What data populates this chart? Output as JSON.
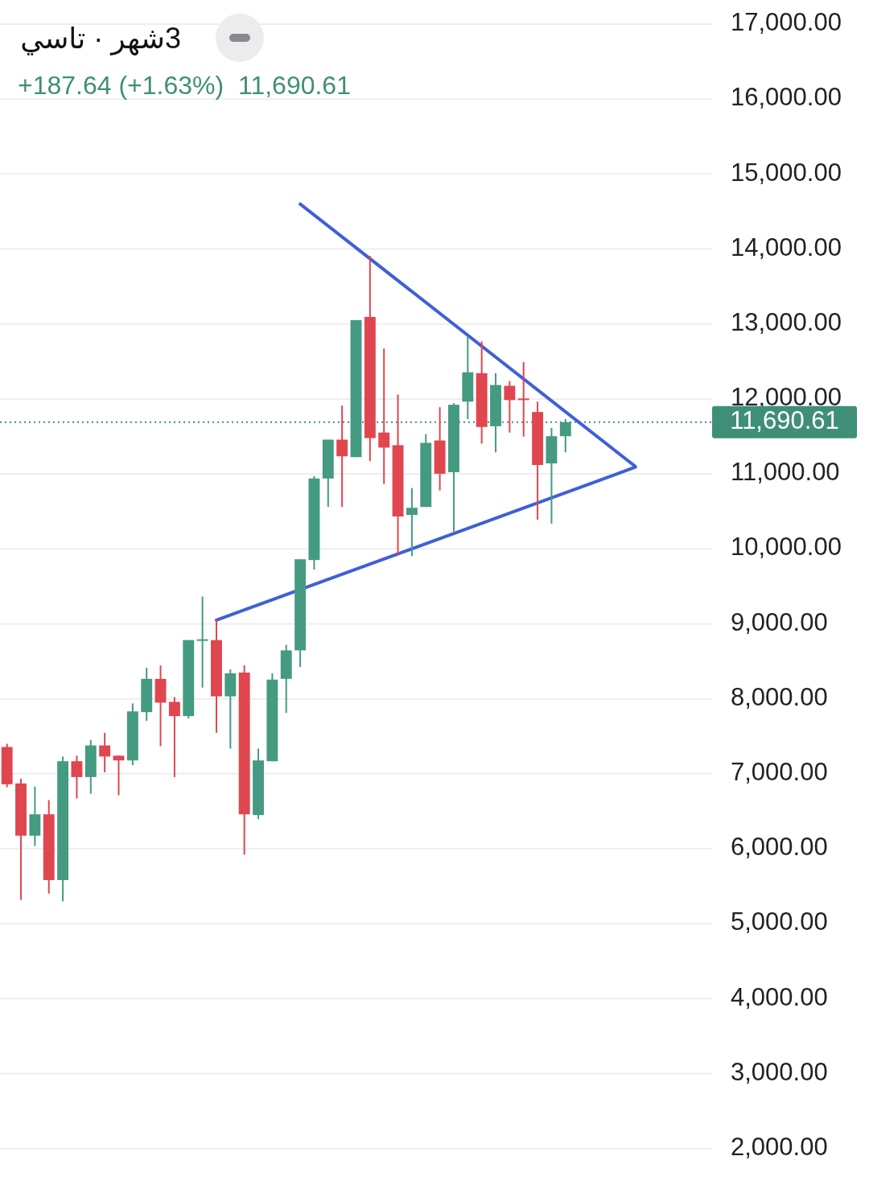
{
  "chart_data": {
    "type": "candlestick",
    "title": "3شهر · تاسي",
    "subtitle": "+187.64 (+1.63%)  11,690.61",
    "categories": [
      null,
      null,
      null,
      null,
      null,
      null,
      null,
      null,
      null,
      null,
      null,
      null,
      null,
      null,
      null,
      null,
      null,
      null,
      null,
      null,
      null,
      null,
      null,
      null,
      null,
      null,
      null,
      null,
      null,
      null,
      null,
      null,
      null,
      null,
      null,
      null,
      null,
      null,
      null,
      null,
      null,
      null,
      null,
      null,
      null,
      null,
      null,
      null,
      null,
      null,
      null
    ],
    "ohlc": [
      [
        7357,
        7400,
        6820,
        6860
      ],
      [
        6871,
        6934,
        5318,
        6174
      ],
      [
        6174,
        6829,
        6036,
        6459
      ],
      [
        6459,
        6649,
        5402,
        5582
      ],
      [
        5582,
        7230,
        5297,
        7167
      ],
      [
        7167,
        7241,
        6670,
        6956
      ],
      [
        6956,
        7452,
        6734,
        7378
      ],
      [
        7378,
        7547,
        7019,
        7230
      ],
      [
        7241,
        7241,
        6713,
        7178
      ],
      [
        7178,
        7938,
        7114,
        7832
      ],
      [
        7822,
        8414,
        7706,
        8266
      ],
      [
        8266,
        8445,
        7367,
        7949
      ],
      [
        7959,
        8023,
        6956,
        7769
      ],
      [
        7769,
        8783,
        7737,
        8783
      ],
      [
        8783,
        9365,
        8149,
        8794
      ],
      [
        8783,
        9058,
        7547,
        8033
      ],
      [
        8033,
        8392,
        7336,
        8340
      ],
      [
        8350,
        8445,
        5920,
        6459
      ],
      [
        6449,
        7336,
        6395,
        7178
      ],
      [
        7167,
        8340,
        7167,
        8256
      ],
      [
        8266,
        8720,
        7811,
        8646
      ],
      [
        8646,
        9861,
        8424,
        9861
      ],
      [
        9851,
        10971,
        9724,
        10939
      ],
      [
        10939,
        11457,
        10559,
        11457
      ],
      [
        11457,
        11911,
        10559,
        11235
      ],
      [
        11224,
        13052,
        11224,
        13052
      ],
      [
        13094,
        13908,
        11171,
        11478
      ],
      [
        11552,
        12672,
        10865,
        11351
      ],
      [
        11383,
        12059,
        9925,
        10432
      ],
      [
        10453,
        10812,
        9903,
        10548
      ],
      [
        10559,
        11531,
        10559,
        11414
      ],
      [
        11446,
        11890,
        10780,
        11002
      ],
      [
        11023,
        11943,
        10231,
        11922
      ],
      [
        11964,
        12830,
        11731,
        12355
      ],
      [
        12344,
        12767,
        11404,
        11626
      ],
      [
        11636,
        12344,
        11288,
        12186
      ],
      [
        12175,
        12239,
        11552,
        11985
      ],
      [
        12006,
        12492,
        11499,
        11985
      ],
      [
        11826,
        11964,
        10390,
        11119
      ],
      [
        11140,
        11615,
        10337,
        11502.97
      ],
      [
        11502.97,
        11731,
        11288,
        11690.61
      ],
      null,
      null,
      null,
      null,
      null,
      null,
      null,
      null,
      null,
      null
    ],
    "colors": [
      "#e0464f",
      "#e0464f",
      "#459a82",
      "#e0464f",
      "#459a82",
      "#e0464f",
      "#459a82",
      "#e0464f",
      "#e0464f",
      "#459a82",
      "#459a82",
      "#e0464f",
      "#e0464f",
      "#459a82",
      "#459a82",
      "#e0464f",
      "#459a82",
      "#e0464f",
      "#459a82",
      "#459a82",
      "#459a82",
      "#459a82",
      "#459a82",
      "#459a82",
      "#e0464f",
      "#459a82",
      "#e0464f",
      "#e0464f",
      "#e0464f",
      "#459a82",
      "#459a82",
      "#e0464f",
      "#459a82",
      "#459a82",
      "#e0464f",
      "#459a82",
      "#e0464f",
      "#e0464f",
      "#e0464f",
      "#459a82",
      "#459a82",
      null,
      null,
      null,
      null,
      null,
      null,
      null,
      null,
      null,
      null
    ],
    "series": [
      {
        "type": "line",
        "color": "#3f5fd8",
        "values": [
          null,
          null,
          null,
          null,
          null,
          null,
          null,
          null,
          null,
          null,
          null,
          null,
          null,
          null,
          null,
          null,
          null,
          null,
          null,
          null,
          null,
          14600,
          null,
          null,
          null,
          null,
          null,
          null,
          null,
          null,
          null,
          null,
          null,
          null,
          null,
          null,
          null,
          null,
          null,
          null,
          null,
          null,
          null,
          null,
          null,
          11100,
          null,
          null,
          null,
          null,
          null
        ]
      },
      {
        "type": "line",
        "color": "#3f5fd8",
        "values": [
          null,
          null,
          null,
          null,
          null,
          null,
          null,
          null,
          null,
          null,
          null,
          null,
          null,
          null,
          null,
          9050,
          null,
          null,
          null,
          null,
          null,
          null,
          null,
          null,
          null,
          null,
          null,
          null,
          null,
          null,
          null,
          null,
          null,
          null,
          null,
          null,
          null,
          null,
          null,
          null,
          null,
          null,
          null,
          null,
          null,
          11090,
          null,
          null,
          null,
          null,
          null
        ]
      }
    ],
    "ylim": [
      1514,
      17000
    ],
    "yticks": [
      {
        "value": 2000,
        "label": "2,000.00"
      },
      {
        "value": 3000,
        "label": "3,000.00"
      },
      {
        "value": 4000,
        "label": "4,000.00"
      },
      {
        "value": 5000,
        "label": "5,000.00"
      },
      {
        "value": 6000,
        "label": "6,000.00"
      },
      {
        "value": 7000,
        "label": "7,000.00"
      },
      {
        "value": 8000,
        "label": "8,000.00"
      },
      {
        "value": 9000,
        "label": "9,000.00"
      },
      {
        "value": 10000,
        "label": "10,000.00"
      },
      {
        "value": 11000,
        "label": "11,000.00"
      },
      {
        "value": 12000,
        "label": "12,000.00"
      },
      {
        "value": 13000,
        "label": "13,000.00"
      },
      {
        "value": 14000,
        "label": "14,000.00"
      },
      {
        "value": 15000,
        "label": "15,000.00"
      },
      {
        "value": 16000,
        "label": "16,000.00"
      },
      {
        "value": 17000,
        "label": "17,000.00"
      }
    ],
    "grid": "y",
    "tick_labels": "y",
    "ref_lines": [
      {
        "axis": "y",
        "value": 11690.61,
        "label": "11,690.61",
        "color": "#3f8f78",
        "line_style": "dotted"
      }
    ]
  }
}
